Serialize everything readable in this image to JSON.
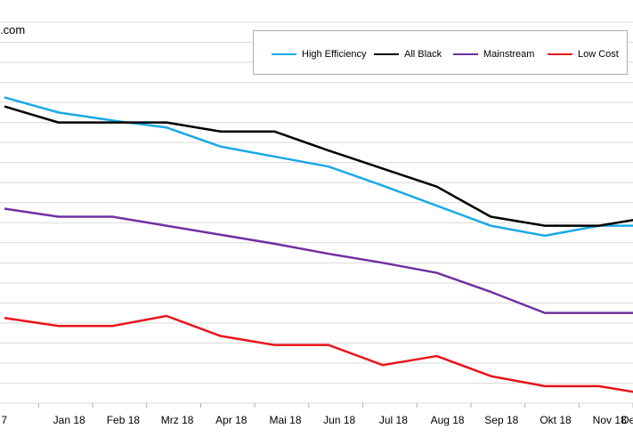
{
  "header": {
    "corner_text": ".com"
  },
  "chart_data": {
    "type": "line",
    "categories": [
      "7",
      "Jan 18",
      "Feb 18",
      "Mrz 18",
      "Apr 18",
      "Mai 18",
      "Jun 18",
      "Jul 18",
      "Aug 18",
      "Sep 18",
      "Okt 18",
      "Nov 18",
      "De"
    ],
    "ylim": [
      0,
      19
    ],
    "grid": true,
    "legend_position": "top-right",
    "series": [
      {
        "name": "High Efficiency",
        "color": "#1aa9e6",
        "values": [
          15.25,
          14.5,
          14.1,
          13.75,
          12.8,
          12.3,
          11.8,
          10.85,
          9.85,
          8.85,
          8.35,
          8.85,
          8.85
        ]
      },
      {
        "name": "All Black",
        "color": "#000000",
        "values": [
          14.8,
          14.0,
          14.0,
          14.0,
          13.55,
          13.55,
          12.6,
          11.7,
          10.8,
          9.3,
          8.85,
          8.85,
          9.3
        ]
      },
      {
        "name": "Mainstream",
        "color": "#7030a0",
        "values": [
          9.7,
          9.3,
          9.3,
          8.85,
          8.4,
          7.95,
          7.45,
          7.0,
          6.5,
          5.55,
          4.5,
          4.5,
          4.5
        ]
      },
      {
        "name": "Low Cost",
        "color": "#e8141a",
        "values": [
          4.25,
          3.85,
          3.85,
          4.35,
          3.35,
          2.9,
          2.9,
          1.9,
          2.35,
          1.35,
          0.85,
          0.85,
          0.4
        ]
      }
    ]
  }
}
